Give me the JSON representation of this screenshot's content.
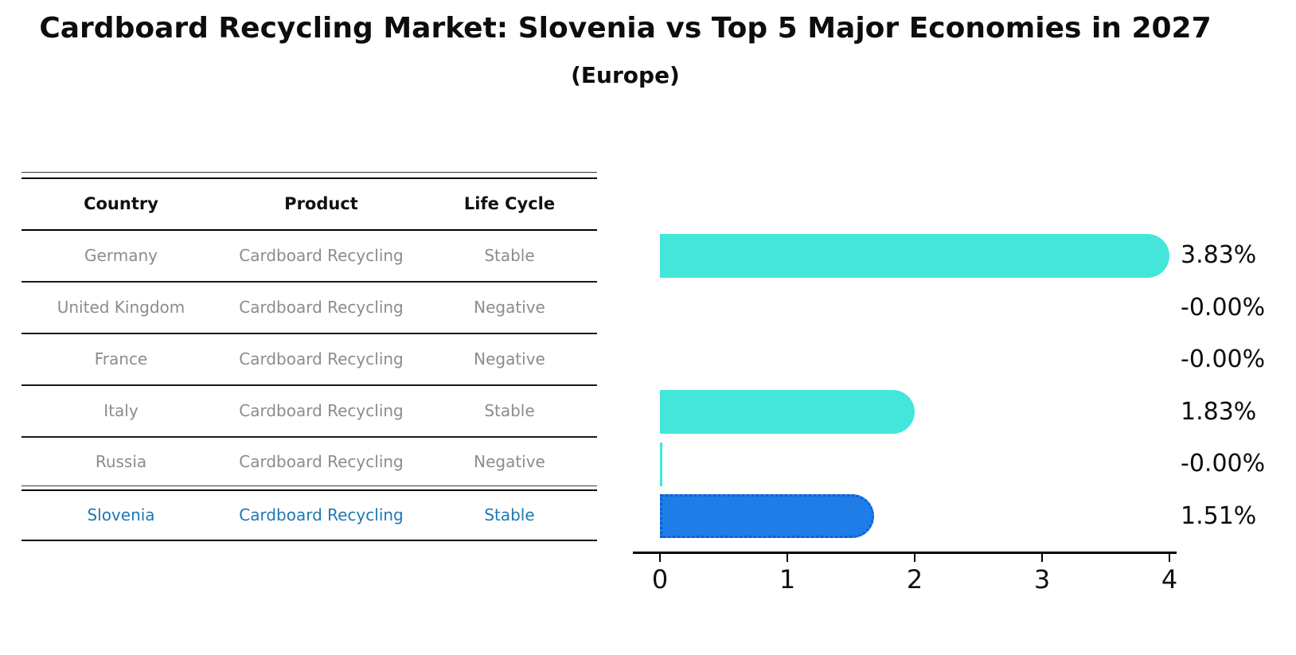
{
  "title": "Cardboard Recycling Market: Slovenia vs Top 5 Major Economies in 2027",
  "subtitle": "(Europe)",
  "table": {
    "headers": [
      "Country",
      "Product",
      "Life Cycle"
    ],
    "rows": [
      {
        "country": "Germany",
        "product": "Cardboard Recycling",
        "life_cycle": "Stable",
        "highlighted": false
      },
      {
        "country": "United Kingdom",
        "product": "Cardboard Recycling",
        "life_cycle": "Negative",
        "highlighted": false
      },
      {
        "country": "France",
        "product": "Cardboard Recycling",
        "life_cycle": "Negative",
        "highlighted": false
      },
      {
        "country": "Italy",
        "product": "Cardboard Recycling",
        "life_cycle": "Stable",
        "highlighted": false
      },
      {
        "country": "Russia",
        "product": "Cardboard Recycling",
        "life_cycle": "Negative",
        "highlighted": false
      },
      {
        "country": "Slovenia",
        "product": "Cardboard Recycling",
        "life_cycle": "Stable",
        "highlighted": true
      }
    ]
  },
  "chart_data": {
    "type": "bar",
    "orientation": "horizontal",
    "title": "Cardboard Recycling Market: Slovenia vs Top 5 Major Economies in 2027",
    "subtitle": "(Europe)",
    "categories": [
      "Germany",
      "United Kingdom",
      "France",
      "Italy",
      "Russia",
      "Slovenia"
    ],
    "values": [
      3.83,
      -0.0,
      -0.0,
      1.83,
      -0.0,
      1.51
    ],
    "value_labels": [
      "3.83%",
      "-0.00%",
      "-0.00%",
      "1.83%",
      "-0.00%",
      "1.51%"
    ],
    "xlabel": "",
    "ylabel": "",
    "xlim": [
      0,
      4
    ],
    "x_ticks": [
      "0",
      "1",
      "2",
      "3",
      "4"
    ],
    "grid": false,
    "legend": "none",
    "bar_color_default": "#44e6db",
    "bar_color_highlight": "#1f7de8",
    "highlight_category": "Slovenia",
    "zero_bar_sliver_category": "Russia"
  },
  "colors": {
    "turquoise_bar": "#44e6db",
    "blue_bar": "#1f7de8",
    "blue_bar_edge": "#0d5ed6",
    "table_text": "#8c8c8c",
    "highlight_text": "#1f77b4",
    "title_text": "#0d0d0d",
    "axis": "#000000"
  }
}
